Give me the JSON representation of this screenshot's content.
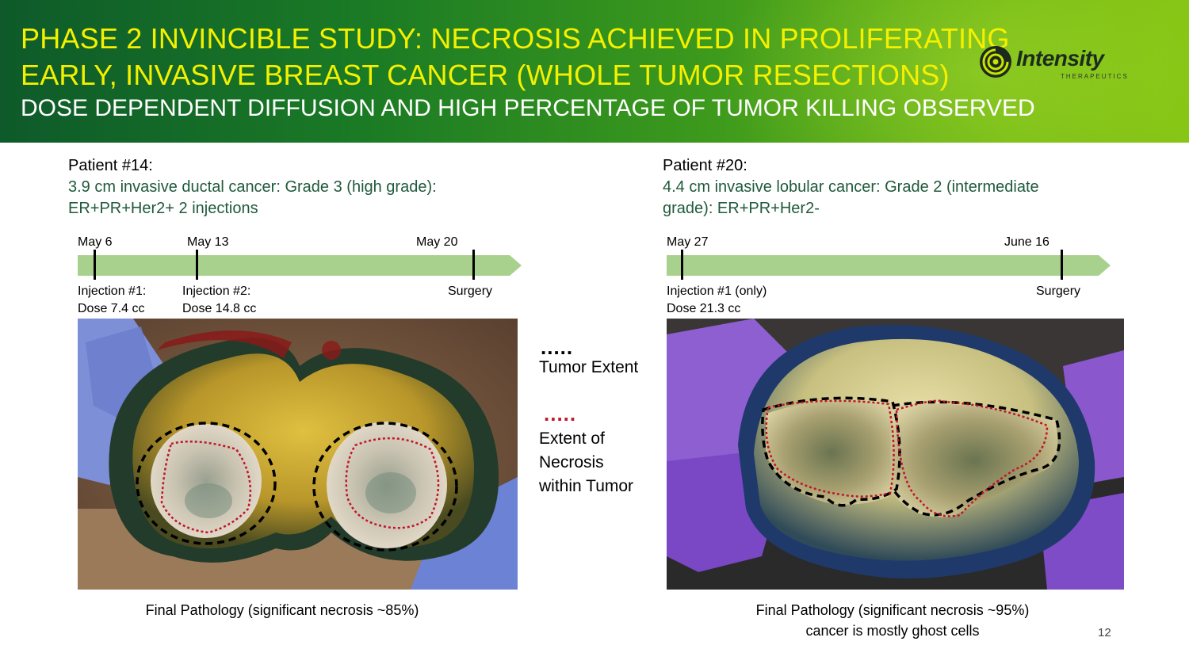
{
  "header": {
    "title_line1": "PHASE 2 INVINCIBLE STUDY: NECROSIS ACHIEVED IN PROLIFERATING",
    "title_line2": "EARLY, INVASIVE BREAST CANCER (WHOLE TUMOR RESECTIONS)",
    "subtitle": "DOSE DEPENDENT DIFFUSION AND HIGH PERCENTAGE OF TUMOR KILLING OBSERVED",
    "logo_name": "Intensity",
    "logo_sub": "THERAPEUTICS",
    "logo_icon": "swirl-logo-icon"
  },
  "left": {
    "patient": "Patient #14:",
    "desc_line1": "3.9 cm invasive ductal cancer: Grade 3 (high grade):",
    "desc_line2": "ER+PR+Her2+ 2 injections",
    "timeline": {
      "dates": [
        "May 6",
        "May 13",
        "May 20"
      ],
      "labels": [
        {
          "line1": "Injection #1:",
          "line2": "Dose 7.4 cc"
        },
        {
          "line1": "Injection #2:",
          "line2": "Dose 14.8 cc"
        },
        {
          "line1": "Surgery",
          "line2": ""
        }
      ]
    },
    "caption": "Final Pathology (significant necrosis ~85%)"
  },
  "right": {
    "patient": "Patient #20:",
    "desc_line1": "4.4 cm invasive lobular cancer: Grade 2 (intermediate",
    "desc_line2": "grade): ER+PR+Her2-",
    "timeline": {
      "dates": [
        "May 27",
        "June 16"
      ],
      "labels": [
        {
          "line1": "Injection #1 (only)",
          "line2": "Dose 21.3 cc"
        },
        {
          "line1": "Surgery",
          "line2": ""
        }
      ]
    },
    "caption_line1": "Final Pathology (significant necrosis ~95%)",
    "caption_line2": "cancer is mostly ghost cells"
  },
  "legend": {
    "tumor_dots": ".....",
    "tumor_label": "Tumor Extent",
    "necrosis_dots": ".....",
    "necrosis_line1": "Extent of",
    "necrosis_line2": "Necrosis",
    "necrosis_line3": "within Tumor",
    "tumor_color": "#000000",
    "necrosis_color": "#c0152a"
  },
  "colors": {
    "title_yellow": "#f5f000",
    "desc_green": "#1f5a3a",
    "timeline_green": "#a9d18e"
  },
  "page_number": "12"
}
